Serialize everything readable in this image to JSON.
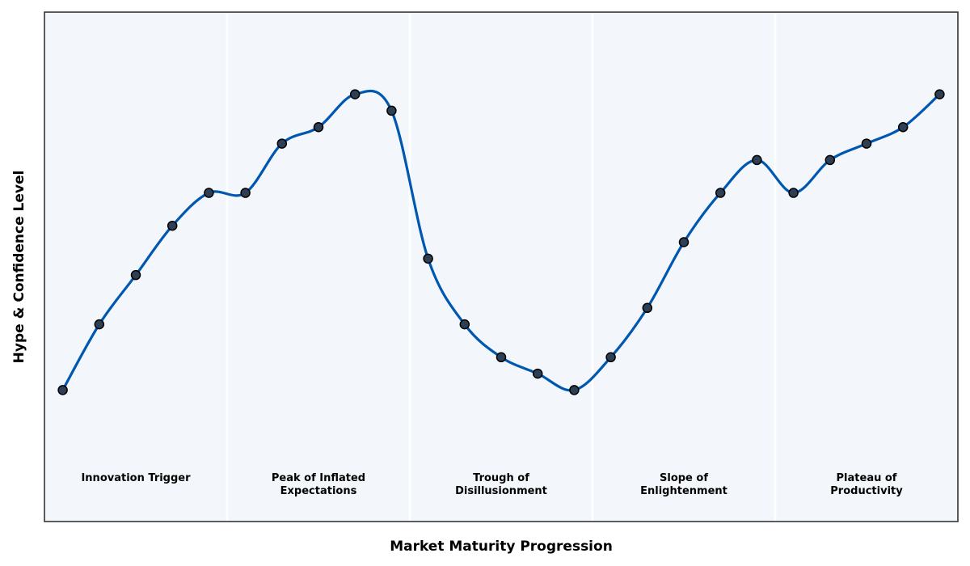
{
  "chart_data": {
    "type": "line",
    "title": "",
    "xlabel": "Market Maturity Progression",
    "ylabel": "Hype & Confidence Level",
    "xlim": [
      -0.5,
      24.5
    ],
    "ylim": [
      0,
      31
    ],
    "grid": false,
    "x": [
      0,
      1,
      2,
      3,
      4,
      5,
      6,
      7,
      8,
      9,
      10,
      11,
      12,
      13,
      14,
      15,
      16,
      17,
      18,
      19,
      20,
      21,
      22,
      23,
      24
    ],
    "series": [
      {
        "values": [
          8,
          12,
          15,
          18,
          20,
          20,
          23,
          24,
          26,
          25,
          16,
          12,
          10,
          9,
          8,
          10,
          13,
          17,
          20,
          22,
          20,
          22,
          23,
          24,
          26
        ]
      }
    ],
    "phase_boundaries": [
      5,
      10,
      15,
      20
    ],
    "phases": [
      {
        "lines": [
          "Innovation Trigger"
        ],
        "center": 2
      },
      {
        "lines": [
          "Peak of Inflated",
          "Expectations"
        ],
        "center": 7
      },
      {
        "lines": [
          "Trough of",
          "Disillusionment"
        ],
        "center": 12
      },
      {
        "lines": [
          "Slope of",
          "Enlightenment"
        ],
        "center": 17
      },
      {
        "lines": [
          "Plateau of",
          "Productivity"
        ],
        "center": 22
      }
    ],
    "colors": {
      "line": "#0057b0",
      "marker_fill": "#2d3f55",
      "marker_edge": "#000000",
      "plot_background": "#f3f7fb",
      "phase_divider": "#ffffff",
      "frame": "#333333"
    }
  }
}
